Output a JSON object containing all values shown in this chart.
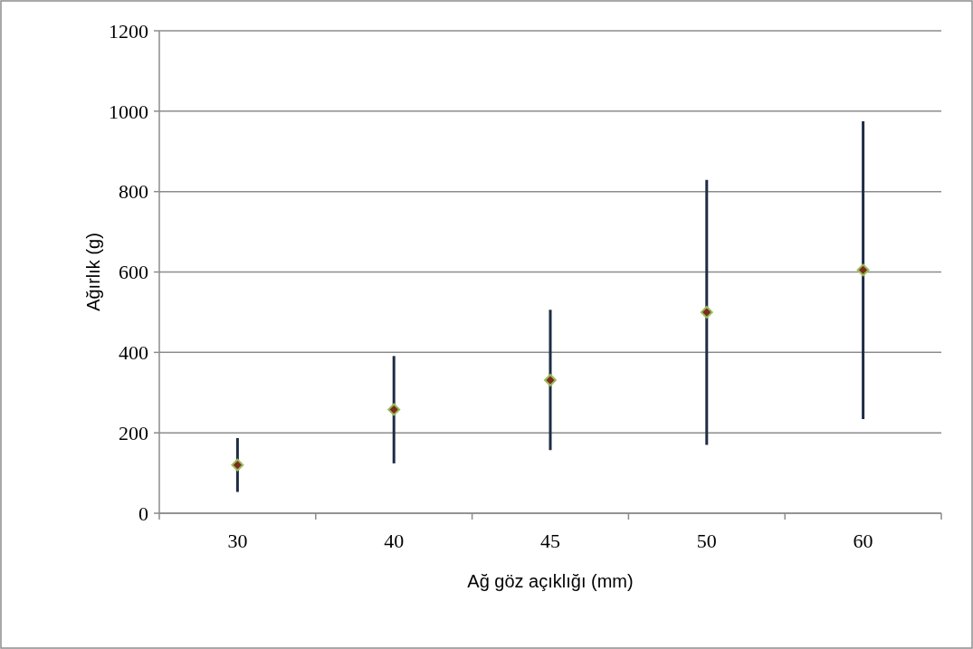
{
  "chart_data": {
    "type": "scatter",
    "xlabel": "Ağ göz açıklığı (mm)",
    "ylabel": "Ağırlık (g)",
    "categories": [
      "30",
      "40",
      "45",
      "50",
      "60"
    ],
    "series": [
      {
        "color": "#7b2c1e",
        "values": [
          120,
          258,
          331,
          500,
          605
        ],
        "errors": [
          [
            53,
            187
          ],
          [
            124,
            391
          ],
          [
            157,
            506
          ],
          [
            170,
            829
          ],
          [
            234,
            975
          ]
        ]
      }
    ],
    "ylim": [
      0,
      1200
    ],
    "yticks": [
      0,
      200,
      400,
      600,
      800,
      1000,
      1200
    ],
    "grid": "y",
    "marker": "diamond"
  }
}
